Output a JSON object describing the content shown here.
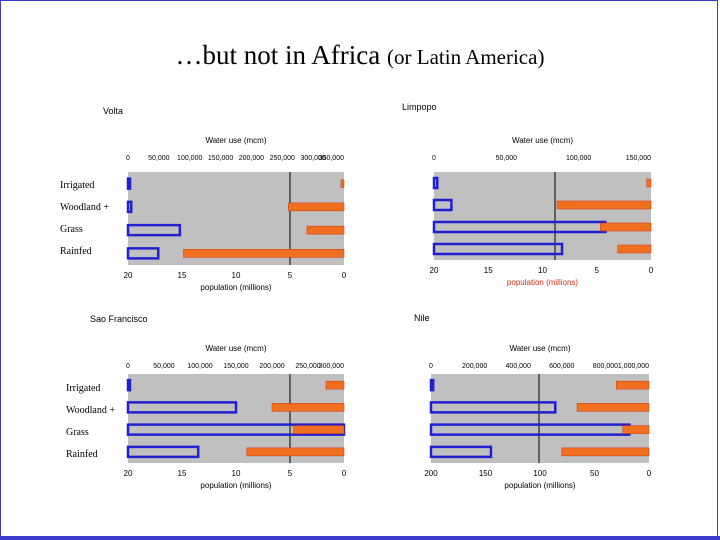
{
  "page": {
    "title_main": "…but not in Africa",
    "title_sub": "(or Latin America)"
  },
  "colors": {
    "panel_bg": "#c0c0c0",
    "population_bar": "#2020d0",
    "water_bar": "#f07020",
    "water_bar_edge": "#d03010",
    "frame": "#3a3acf"
  },
  "category_labels": [
    "Irrigated",
    "Woodland +",
    "Grass",
    "Rainfed"
  ],
  "chart_data": [
    {
      "type": "bar",
      "title": "Volta",
      "top_axis_label": "Water use (mcm)",
      "top_ticks": [
        "0",
        "50,000",
        "100,000",
        "150,000",
        "200,000",
        "250,000",
        "300,000",
        "350,000"
      ],
      "top_range": [
        0,
        350000
      ],
      "bottom_axis_label": "population (millions)",
      "bottom_ticks": [
        "20",
        "15",
        "10",
        "5",
        "0"
      ],
      "bottom_range": [
        20,
        0
      ],
      "series": [
        {
          "name": "population (millions)",
          "values": [
            0.05,
            0.3,
            4.8,
            2.8
          ]
        },
        {
          "name": "water use (mcm)",
          "values": [
            2000,
            90000,
            60000,
            260000
          ]
        }
      ]
    },
    {
      "type": "bar",
      "title": "Limpopo",
      "top_axis_label": "Water use (mcm)",
      "top_ticks": [
        "0",
        "50,000",
        "100,000",
        "150,000"
      ],
      "top_range": [
        0,
        150000
      ],
      "bottom_axis_label": "population (millions)",
      "bottom_ticks": [
        "20",
        "15",
        "10",
        "5",
        "0"
      ],
      "bottom_range": [
        20,
        0
      ],
      "series": [
        {
          "name": "population (millions)",
          "values": [
            0.3,
            1.6,
            15.8,
            11.8
          ]
        },
        {
          "name": "water use (mcm)",
          "values": [
            3000,
            65000,
            35000,
            23000
          ]
        }
      ]
    },
    {
      "type": "bar",
      "title": "Sao Francisco",
      "top_axis_label": "Water use (mcm)",
      "top_ticks": [
        "0",
        "50,000",
        "100,000",
        "150,000",
        "200,000",
        "250,000",
        "300,000"
      ],
      "top_range": [
        0,
        300000
      ],
      "bottom_axis_label": "population (millions)",
      "bottom_ticks": [
        "20",
        "15",
        "10",
        "5",
        "0"
      ],
      "bottom_range": [
        20,
        0
      ],
      "series": [
        {
          "name": "population (millions)",
          "values": [
            0.1,
            10,
            20,
            6.5
          ]
        },
        {
          "name": "water use (mcm)",
          "values": [
            25000,
            100000,
            70000,
            135000
          ]
        }
      ]
    },
    {
      "type": "bar",
      "title": "Nile",
      "top_axis_label": "Water use (mcm)",
      "top_ticks": [
        "0",
        "200,000",
        "400,000",
        "600,000",
        "800,000",
        "1,000,000"
      ],
      "top_range": [
        0,
        1000000
      ],
      "bottom_axis_label": "population (millions)",
      "bottom_ticks": [
        "200",
        "150",
        "100",
        "50",
        "0"
      ],
      "bottom_range": [
        200,
        0
      ],
      "series": [
        {
          "name": "population (millions)",
          "values": [
            2,
            114,
            182,
            55
          ]
        },
        {
          "name": "water use (mcm)",
          "values": [
            150000,
            330000,
            120000,
            400000
          ]
        }
      ]
    }
  ]
}
